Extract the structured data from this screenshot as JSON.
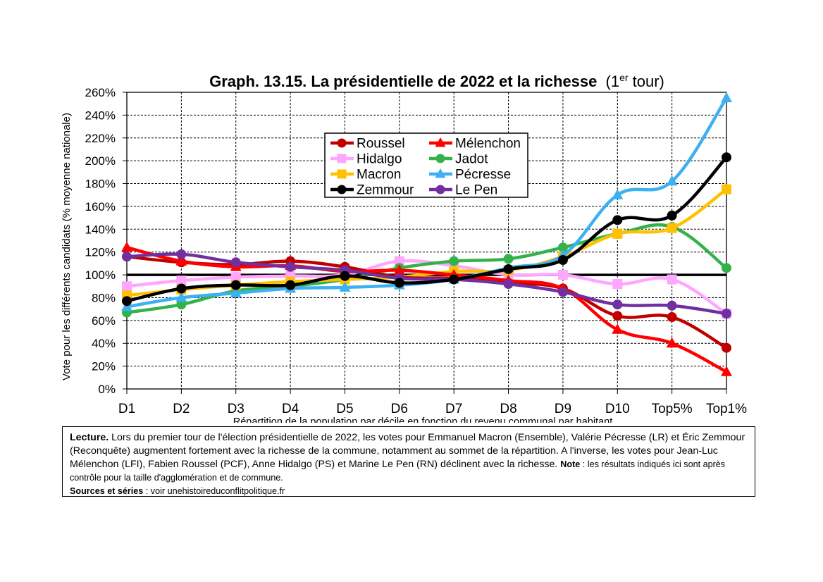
{
  "chart_data": {
    "type": "line",
    "title_main": "Graph. 13.15. La présidentielle de 2022 et la richesse",
    "title_suffix_pre": "(1",
    "title_suffix_sup": "er",
    "title_suffix_post": " tour)",
    "ylabel": "Vote pour les différents candidats (% moyenne nationale)",
    "xlabel": "Répartition de la population par décile en fonction du revenu communal par habitant",
    "categories": [
      "D1",
      "D2",
      "D3",
      "D4",
      "D5",
      "D6",
      "D7",
      "D8",
      "D9",
      "D10",
      "Top5%",
      "Top1%"
    ],
    "yticks": [
      "0%",
      "20%",
      "40%",
      "60%",
      "80%",
      "100%",
      "120%",
      "140%",
      "160%",
      "180%",
      "200%",
      "220%",
      "240%",
      "260%"
    ],
    "ylim": [
      0,
      260
    ],
    "reference_line": 100,
    "grid": true,
    "legend_position": "upper-center",
    "series": [
      {
        "name": "Roussel",
        "color": "#c00000",
        "marker": "circle",
        "values": [
          116,
          111,
          109,
          112,
          107,
          98,
          97,
          93,
          88,
          64,
          63,
          36
        ]
      },
      {
        "name": "Mélenchon",
        "color": "#ff0000",
        "marker": "triangle",
        "values": [
          124,
          112,
          107,
          108,
          103,
          104,
          100,
          95,
          88,
          52,
          40,
          15
        ]
      },
      {
        "name": "Hidalgo",
        "color": "#ffa6ff",
        "marker": "square",
        "values": [
          90,
          95,
          98,
          99,
          100,
          112,
          108,
          100,
          100,
          92,
          96,
          66
        ]
      },
      {
        "name": "Jadot",
        "color": "#33b24a",
        "marker": "circle",
        "values": [
          67,
          74,
          86,
          90,
          96,
          106,
          112,
          114,
          124,
          136,
          142,
          106
        ]
      },
      {
        "name": "Macron",
        "color": "#ffc000",
        "marker": "square",
        "values": [
          82,
          87,
          91,
          94,
          96,
          98,
          103,
          104,
          116,
          136,
          141,
          175
        ]
      },
      {
        "name": "Pécresse",
        "color": "#3cb0f0",
        "marker": "triangle",
        "values": [
          72,
          80,
          84,
          88,
          89,
          91,
          96,
          106,
          117,
          170,
          182,
          255
        ]
      },
      {
        "name": "Zemmour",
        "color": "#000000",
        "marker": "circle",
        "values": [
          77,
          88,
          91,
          91,
          99,
          93,
          96,
          105,
          113,
          148,
          152,
          203
        ]
      },
      {
        "name": "Le Pen",
        "color": "#7030a0",
        "marker": "circle",
        "values": [
          116,
          118,
          111,
          107,
          104,
          97,
          96,
          92,
          85,
          74,
          73,
          66
        ]
      }
    ]
  },
  "note": {
    "lecture_label": "Lecture.",
    "lecture_text": " Lors du premier tour de l'élection présidentielle de 2022, les votes pour Emmanuel Macron (Ensemble), Valérie Pécresse (LR) et Éric Zemmour (Reconquête) augmentent fortement avec la richesse de la commune, notamment au sommet de la répartition. A l'inverse, les votes pour Jean-Luc Mélenchon (LFI), Fabien Roussel (PCF), Anne Hidalgo (PS) et Marine Le Pen (RN) déclinent avec la richesse. ",
    "note_label": "Note",
    "note_text": " : les résultats indiqués ici sont après contrôle pour la taille d'agglomération et de commune.",
    "sources_label": "Sources et séries",
    "sources_text": " : voir unehistoireduconflitpolitique.fr"
  }
}
